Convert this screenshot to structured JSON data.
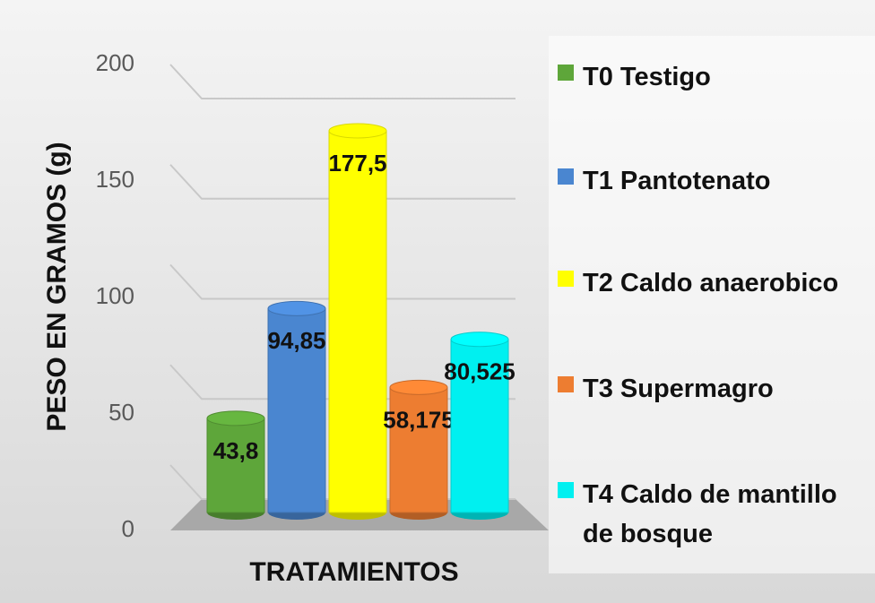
{
  "chart_data": {
    "type": "bar3d",
    "y_label": "PESO EN GRAMOS (g)",
    "x_label": "TRATAMIENTOS",
    "ylim": [
      0,
      200
    ],
    "yticks": [
      0,
      50,
      100,
      150,
      200
    ],
    "grid": true,
    "legend": "right",
    "series": [
      {
        "name": "T0 Testigo",
        "color": "#5ea63a",
        "values": [
          43.8
        ],
        "value_labels": [
          "43,8"
        ]
      },
      {
        "name": "T1 Pantotenato",
        "color": "#4a86d0",
        "values": [
          94.85
        ],
        "value_labels": [
          "94,85"
        ]
      },
      {
        "name": "T2 Caldo anaerobico",
        "color": "#ffff00",
        "values": [
          177.5
        ],
        "value_labels": [
          "177,5"
        ]
      },
      {
        "name": "T3 Supermagro",
        "color": "#ed7d31",
        "values": [
          58.175
        ],
        "value_labels": [
          "58,175"
        ]
      },
      {
        "name": "T4 Caldo de mantillo de bosque",
        "color": "#00f0f0",
        "values": [
          80.525
        ],
        "value_labels": [
          "80,525"
        ]
      }
    ]
  }
}
